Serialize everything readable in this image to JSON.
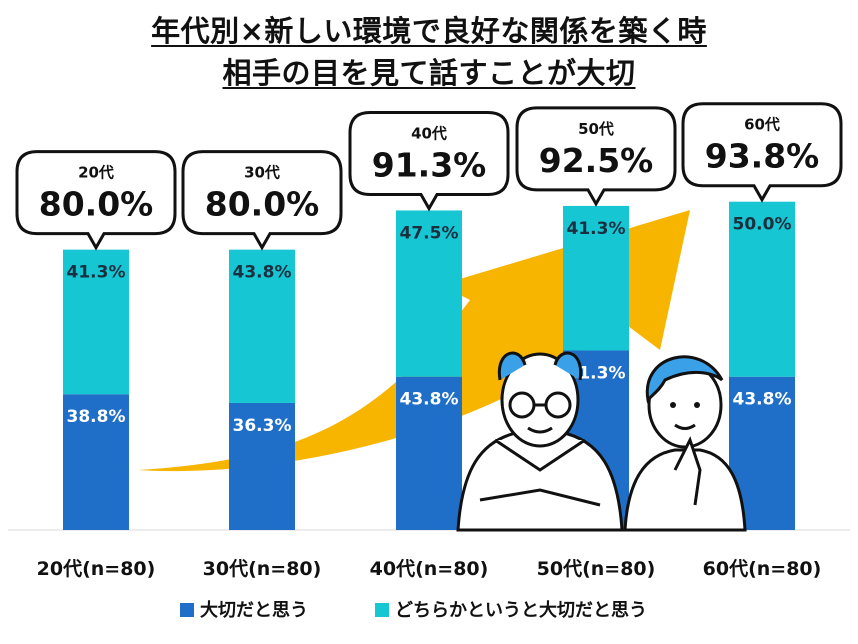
{
  "title_line1": "年代別×新しい環境で良好な関係を築く時",
  "title_line2": "相手の目を見て話すことが大切",
  "colors": {
    "important": "#1f6fc9",
    "somewhat": "#17c6d3",
    "arrow": "#f7b500"
  },
  "chart_data": {
    "type": "bar",
    "stacked": true,
    "categories": [
      "20代(n=80)",
      "30代(n=80)",
      "40代(n=80)",
      "50代(n=80)",
      "60代(n=80)"
    ],
    "series": [
      {
        "name": "大切だと思う",
        "values": [
          38.8,
          36.3,
          43.8,
          51.3,
          43.8
        ],
        "labels": [
          "38.8%",
          "36.3%",
          "43.8%",
          "51.3%",
          "43.8%"
        ]
      },
      {
        "name": "どちらかというと大切だと思う",
        "values": [
          41.3,
          43.8,
          47.5,
          41.3,
          50.0
        ],
        "labels": [
          "41.3%",
          "43.8%",
          "47.5%",
          "41.3%",
          "50.0%"
        ]
      }
    ],
    "totals": [
      {
        "age": "20代",
        "value": "80.0%"
      },
      {
        "age": "30代",
        "value": "80.0%"
      },
      {
        "age": "40代",
        "value": "91.3%"
      },
      {
        "age": "50代",
        "value": "92.5%"
      },
      {
        "age": "60代",
        "value": "93.8%"
      }
    ],
    "ylim": [
      0,
      100
    ]
  },
  "legend": {
    "important": "大切だと思う",
    "somewhat": "どちらかというと大切だと思う"
  }
}
